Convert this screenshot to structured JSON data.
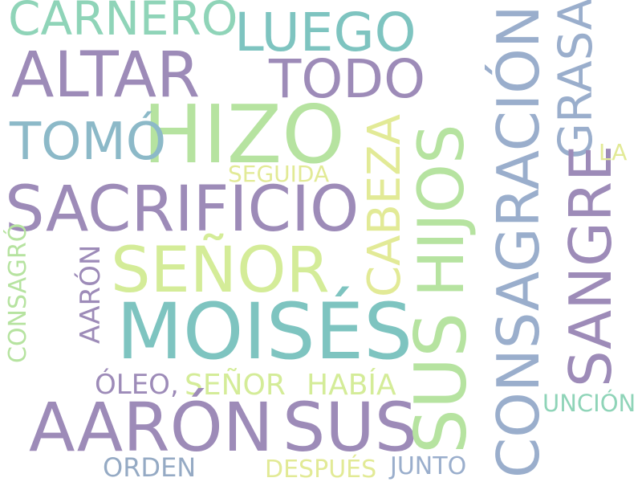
{
  "palette": {
    "purple": "#9d8bb8",
    "teal": "#7ec4c0",
    "mint": "#8fd4b8",
    "green": "#b6e3a0",
    "yellow": "#e2ea96",
    "blue": "#9aaecc",
    "slate": "#95aac4"
  },
  "words": [
    {
      "text": "CARNERO",
      "color": "#8fd4b8"
    },
    {
      "text": "LUEGO",
      "color": "#7ec4c0"
    },
    {
      "text": "ALTAR",
      "color": "#9d8bb8"
    },
    {
      "text": "TODO",
      "color": "#9d8bb8"
    },
    {
      "text": "HIZO",
      "color": "#b6e3a0"
    },
    {
      "text": "TOMÓ",
      "color": "#8cb9c8"
    },
    {
      "text": "SEGUIDA",
      "color": "#e2ea96"
    },
    {
      "text": "SACRIFICIO",
      "color": "#9d8bb8"
    },
    {
      "text": "SEÑOR",
      "color": "#d4ec98"
    },
    {
      "text": "MOISÉS",
      "color": "#7ec4c0"
    },
    {
      "text": "AARÓN",
      "color": "#9d8bb8"
    },
    {
      "text": "CONSAGRÓ",
      "color": "#b6e3a0"
    },
    {
      "text": "ÓLEO,",
      "color": "#9d8bb8"
    },
    {
      "text": "SEÑOR",
      "color": "#d4ec98"
    },
    {
      "text": "HABÍA",
      "color": "#d4ec98"
    },
    {
      "text": "AARÓN",
      "color": "#9d8bb8"
    },
    {
      "text": "SUS",
      "color": "#9d8bb8"
    },
    {
      "text": "ORDEN",
      "color": "#95aac4"
    },
    {
      "text": "DESPUÉS",
      "color": "#e2ea96"
    },
    {
      "text": "JUNTO",
      "color": "#9aaecc"
    },
    {
      "text": "CABEZA",
      "color": "#e2ea96"
    },
    {
      "text": "HIJOS",
      "color": "#b6e3a0"
    },
    {
      "text": "SUS",
      "color": "#b6e3a0"
    },
    {
      "text": "CONSAGRACIÓN",
      "color": "#9aaecc"
    },
    {
      "text": "GRASA",
      "color": "#9aaecc"
    },
    {
      "text": "SANGRE",
      "color": "#9d8bb8"
    },
    {
      "text": "LA",
      "color": "#e2ea96"
    },
    {
      "text": "UNCIÓN",
      "color": "#8fd4b8"
    }
  ]
}
